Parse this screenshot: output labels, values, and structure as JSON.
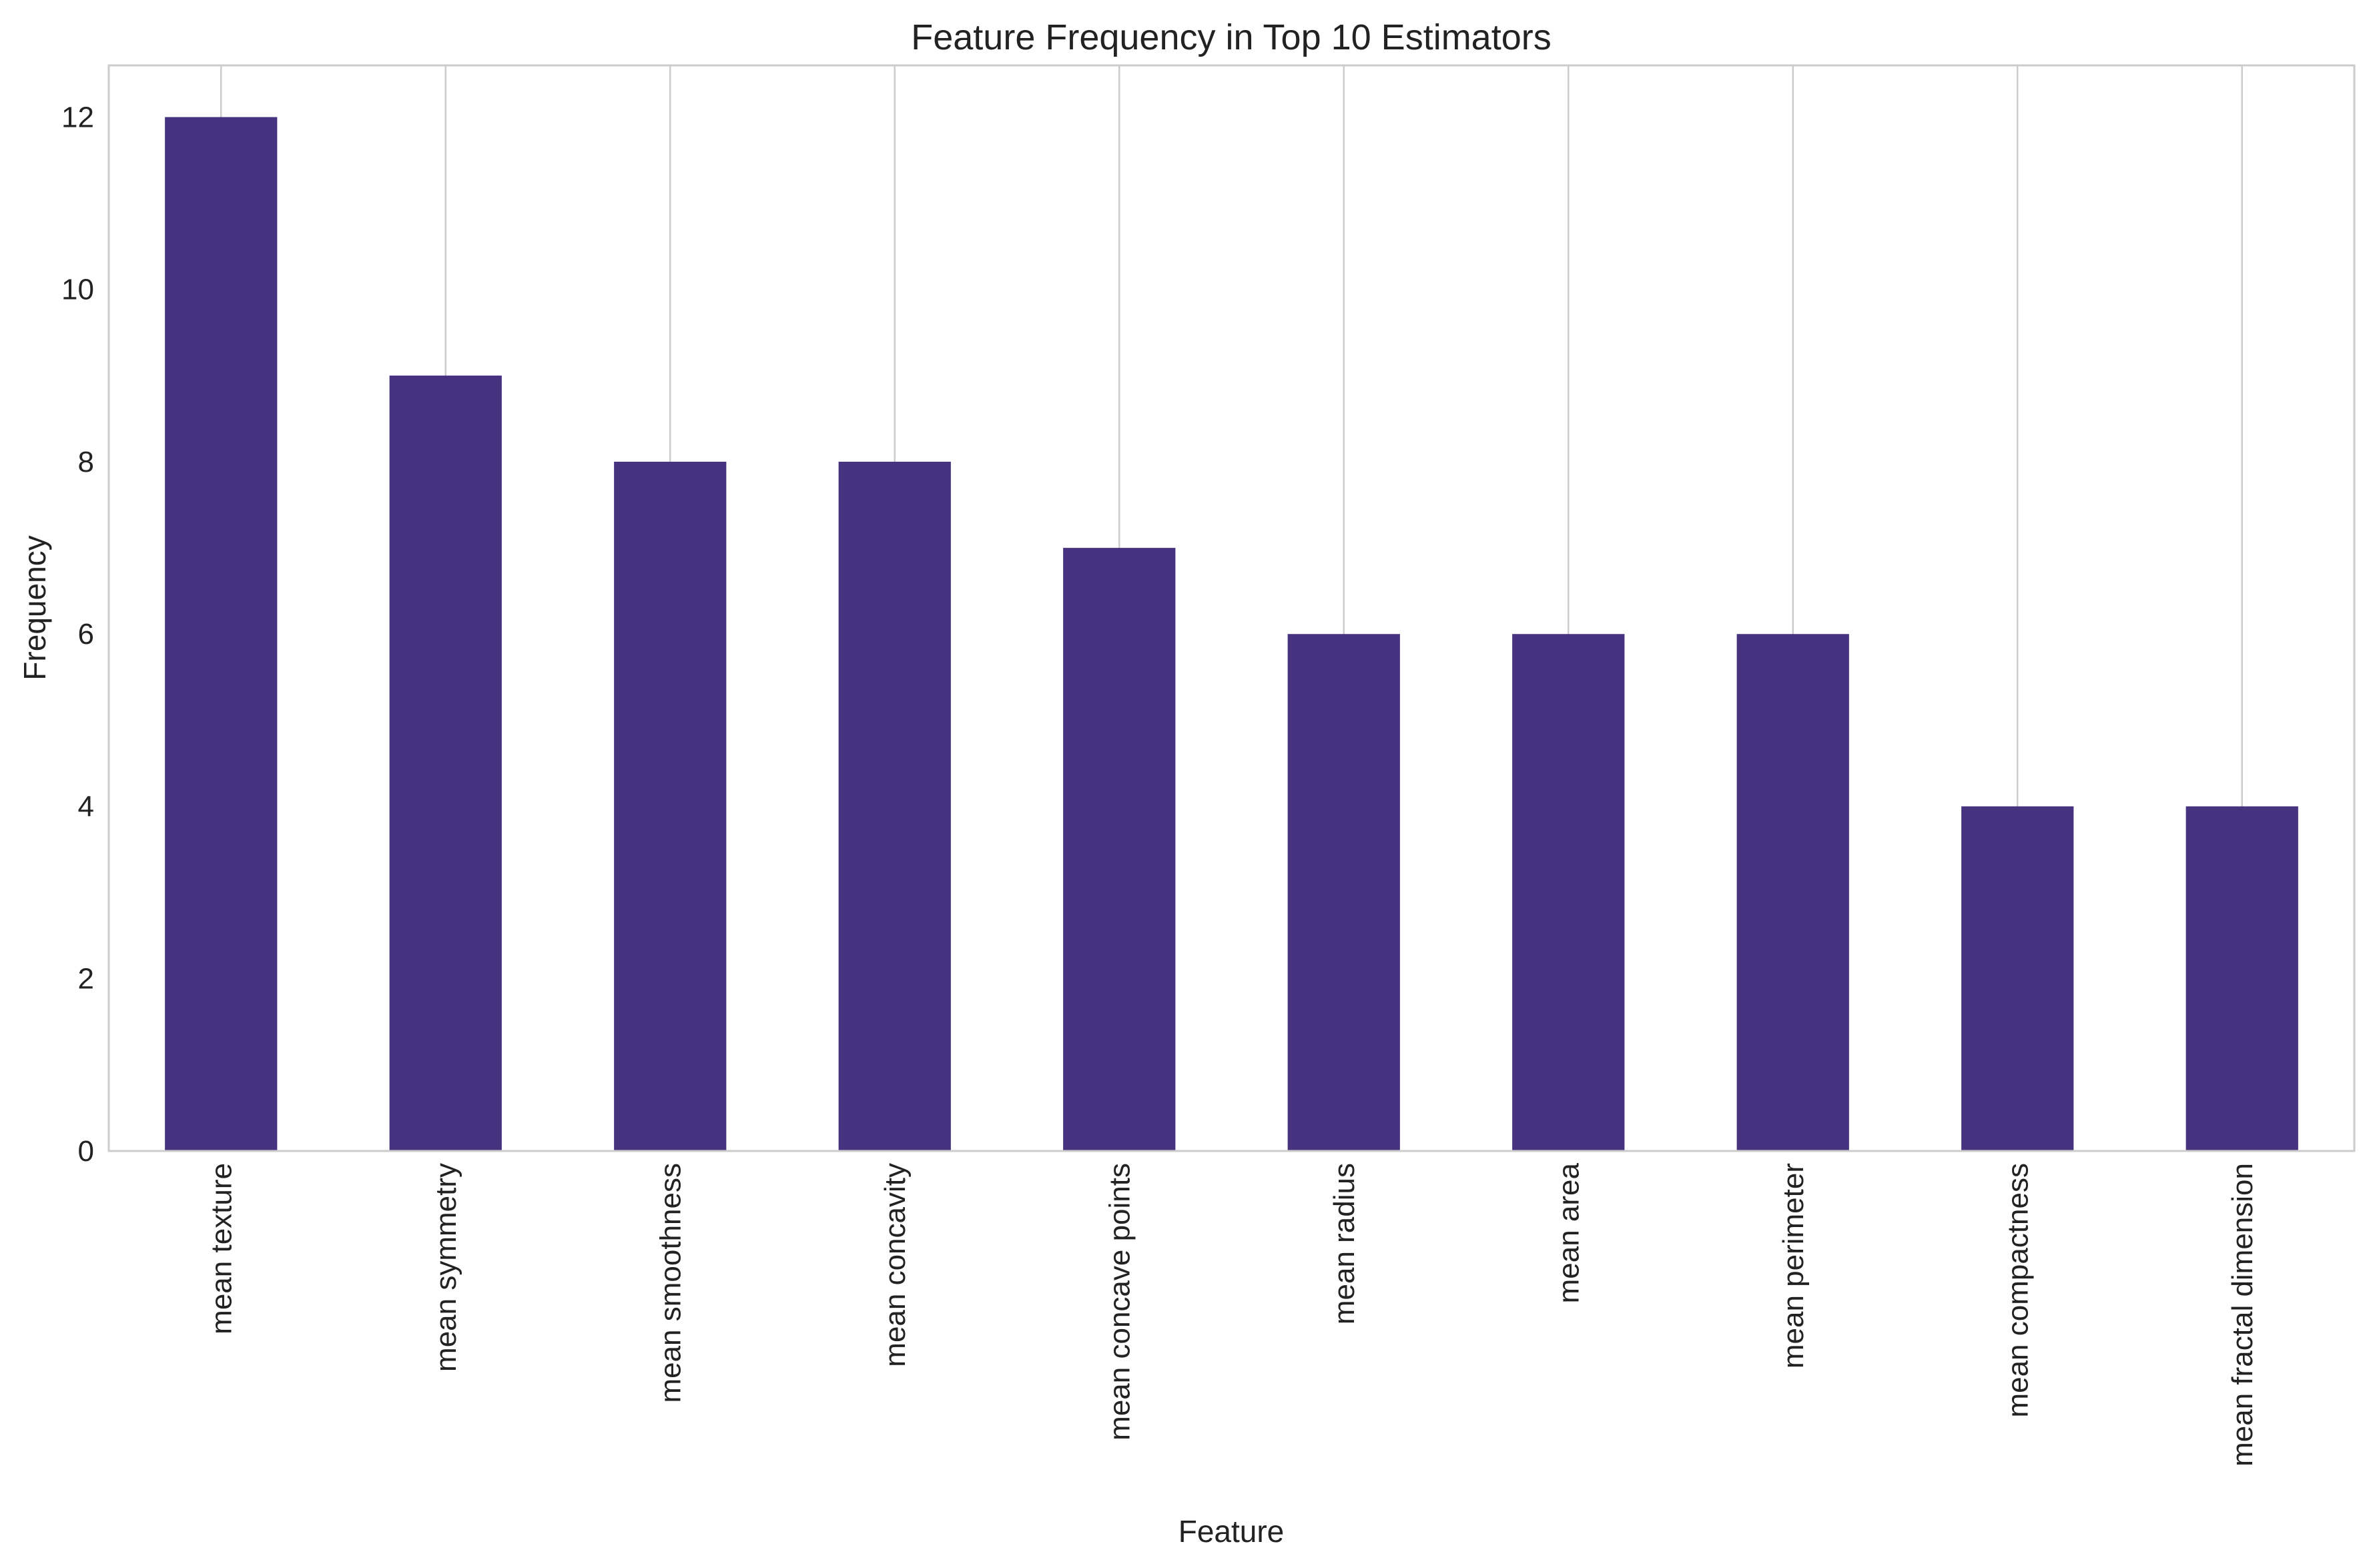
{
  "chart_data": {
    "type": "bar",
    "title": "Feature Frequency in Top 10 Estimators",
    "xlabel": "Feature",
    "ylabel": "Frequency",
    "categories": [
      "mean texture",
      "mean symmetry",
      "mean smoothness",
      "mean concavity",
      "mean concave points",
      "mean radius",
      "mean area",
      "mean perimeter",
      "mean compactness",
      "mean fractal dimension"
    ],
    "values": [
      12,
      9,
      8,
      8,
      7,
      6,
      6,
      6,
      4,
      4
    ],
    "yticks": [
      0,
      2,
      4,
      6,
      8,
      10,
      12
    ],
    "ylim": [
      0,
      12.6
    ],
    "grid": "vertical",
    "bar_color": "#46327e",
    "grid_color": "#cccccc",
    "axes_edge_color": "#cccccc",
    "legend": "none"
  }
}
